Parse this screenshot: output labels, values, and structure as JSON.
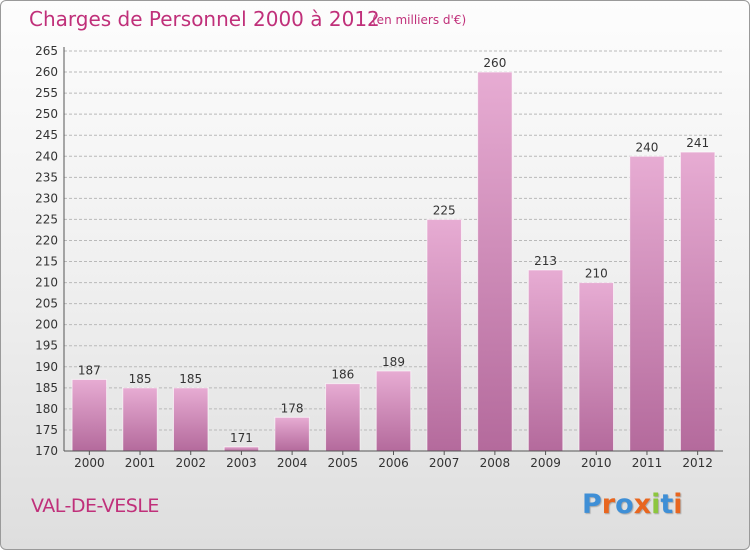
{
  "header": {
    "title": "Charges de Personnel 2000 à 2012",
    "subtitle": "(en milliers d'€)"
  },
  "footer": {
    "city": "VAL-DE-VESLE",
    "logo": {
      "text": "Proxiti",
      "colors": [
        "#3f8fd6",
        "#e8661f",
        "#3f8fd6",
        "#e8661f",
        "#8cc63e",
        "#3f8fd6",
        "#e8661f"
      ]
    }
  },
  "colors": {
    "title": "#c0307a",
    "bar_light": "#e7acd3",
    "bar_dark": "#b46a9c",
    "grid": "#b9b9b9",
    "axis": "#555555"
  },
  "chart_data": {
    "type": "bar",
    "title": "Charges de Personnel 2000 à 2012",
    "subtitle": "(en milliers d'€)",
    "xlabel": "",
    "ylabel": "",
    "categories": [
      "2000",
      "2001",
      "2002",
      "2003",
      "2004",
      "2005",
      "2006",
      "2007",
      "2008",
      "2009",
      "2010",
      "2011",
      "2012"
    ],
    "values": [
      187,
      185,
      185,
      171,
      178,
      186,
      189,
      225,
      260,
      213,
      210,
      240,
      241
    ],
    "ylim": [
      170,
      265
    ],
    "yticks": [
      170,
      175,
      180,
      185,
      190,
      195,
      200,
      205,
      210,
      215,
      220,
      225,
      230,
      235,
      240,
      245,
      250,
      255,
      260,
      265
    ],
    "grid": true,
    "data_labels": true
  }
}
